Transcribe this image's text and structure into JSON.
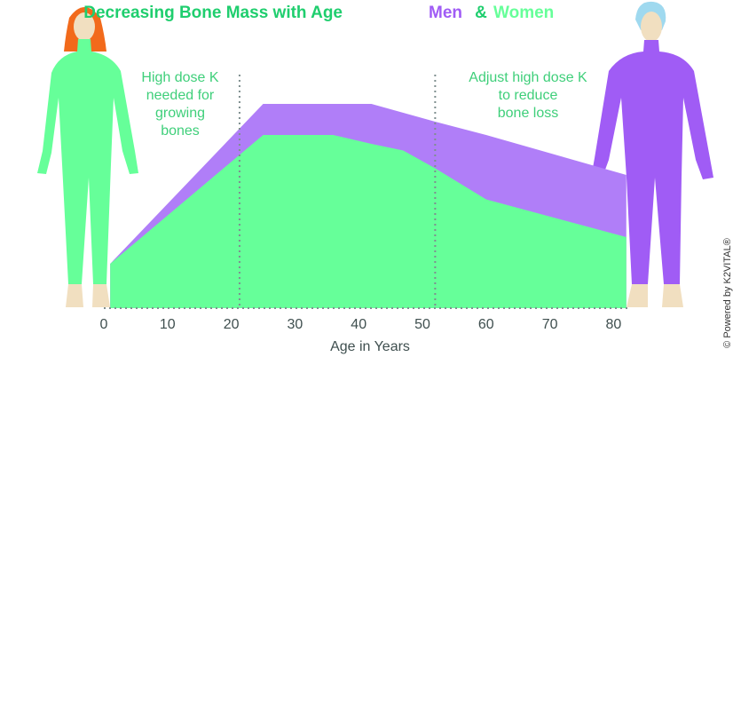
{
  "chart_data": {
    "type": "area",
    "title": "Decreasing Bone Mass with Age",
    "title_connector": "&",
    "x": [
      1,
      25,
      36,
      42,
      47,
      52,
      60,
      82
    ],
    "series": [
      {
        "name": "Men",
        "color": "#b07ef8",
        "values": [
          20,
          92,
          92,
          92,
          88,
          84,
          78,
          60
        ]
      },
      {
        "name": "Women",
        "color": "#66ff99",
        "values": [
          20,
          78,
          78,
          74,
          71,
          63,
          49,
          32
        ]
      }
    ],
    "xlim": [
      0,
      82
    ],
    "ylim": [
      0,
      100
    ],
    "xticks": [
      0,
      10,
      20,
      30,
      40,
      50,
      60,
      70,
      80
    ],
    "x_label": "Age in Years",
    "reference_lines": [
      21.3,
      52
    ],
    "annotations": [
      [
        "High dose K",
        "needed for",
        "growing",
        "bones"
      ],
      [
        "Adjust high dose K",
        "to reduce",
        "bone loss"
      ]
    ],
    "credit": "© Powered by K2VITAL®"
  }
}
